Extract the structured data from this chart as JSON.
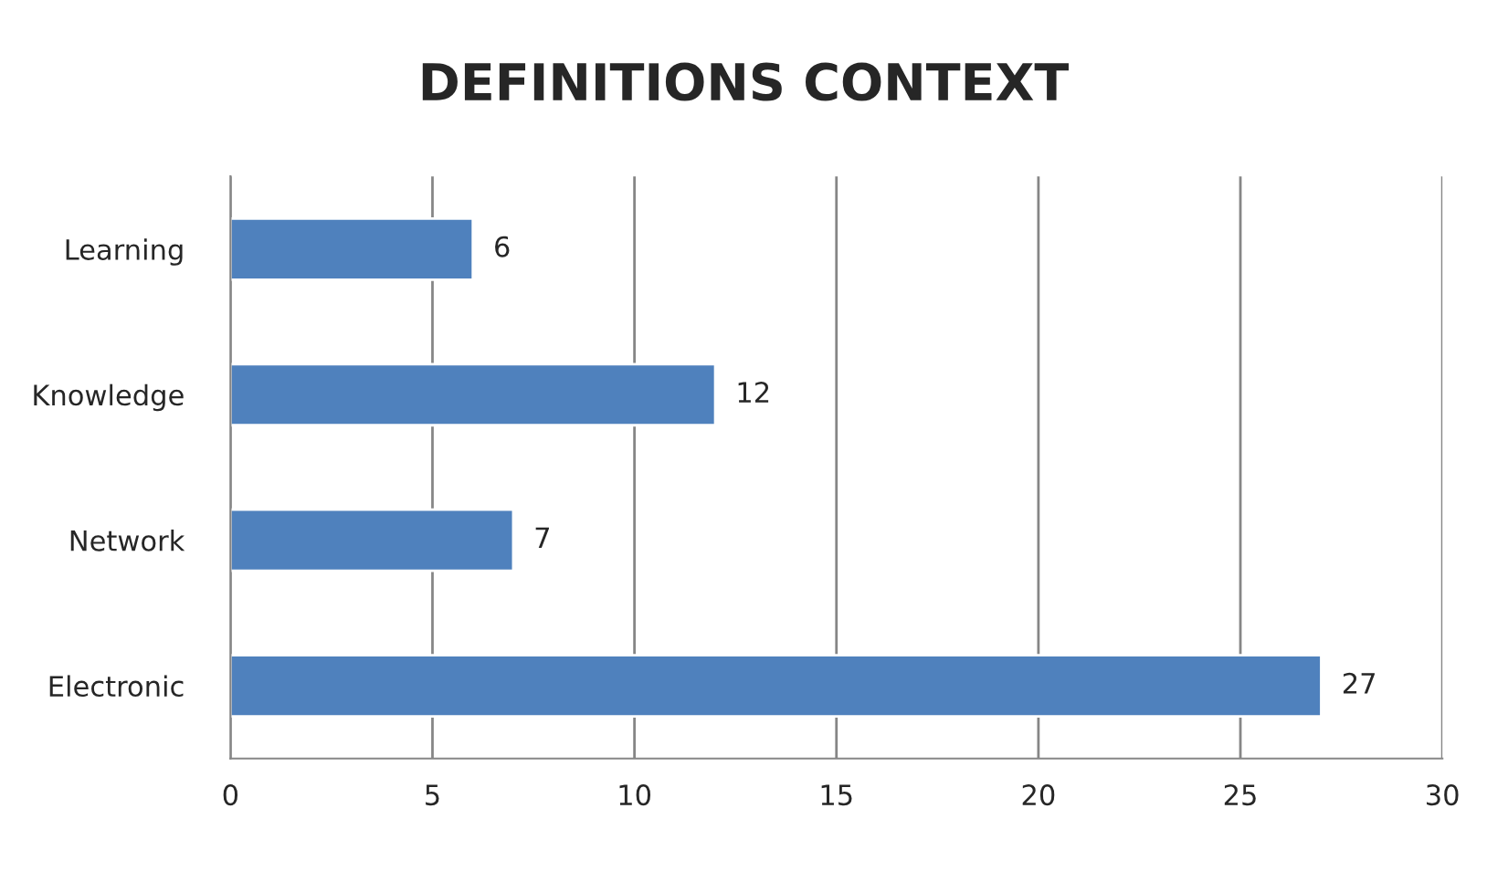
{
  "chart_data": {
    "type": "bar",
    "title": "DEFINITIONS CONTEXT",
    "orientation": "horizontal",
    "categories": [
      "Learning",
      "Knowledge",
      "Network",
      "Electronic"
    ],
    "values": [
      6,
      12,
      7,
      27
    ],
    "color": "#4f81bd",
    "xlim": [
      0,
      30
    ],
    "xticks": [
      0,
      5,
      10,
      15,
      20,
      25,
      30
    ],
    "grid": "x",
    "data_labels": true,
    "legend": false
  }
}
